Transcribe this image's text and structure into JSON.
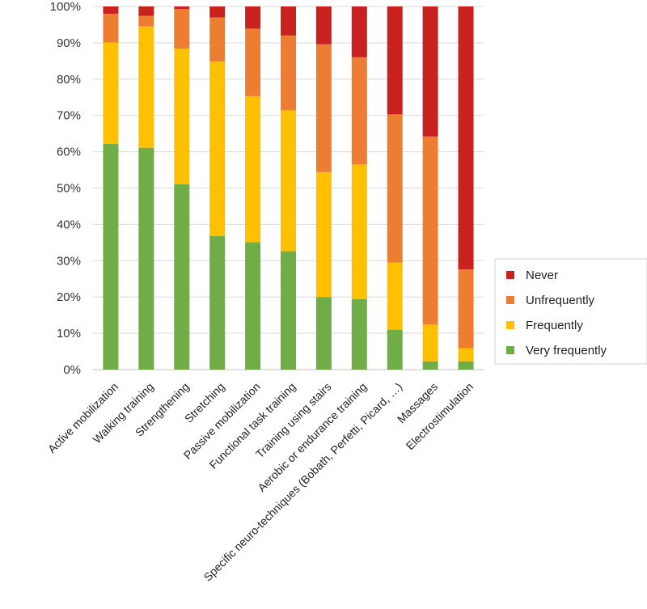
{
  "chart_data": {
    "type": "bar",
    "stacked": true,
    "title": "",
    "xlabel": "",
    "ylabel": "",
    "ylim": [
      0,
      100
    ],
    "y_ticks": [
      "0%",
      "10%",
      "20%",
      "30%",
      "40%",
      "50%",
      "60%",
      "70%",
      "80%",
      "90%",
      "100%"
    ],
    "grid": true,
    "legend_position": "right",
    "categories": [
      "Active mobilization",
      "Walking training",
      "Strengthening",
      "Stretching",
      "Passive mobilization",
      "Functional task training",
      "Training using stairs",
      "Aerobic or endurance training",
      "Specific neuro-techniques (Bobath, Perfetti, Picard, …)",
      "Massages",
      "Electrostimulation"
    ],
    "series": [
      {
        "name": "Very frequently",
        "color": "#70ad47",
        "values": [
          62.2,
          61.1,
          51.0,
          36.8,
          35.1,
          32.6,
          20.0,
          19.4,
          11.0,
          2.3,
          2.3
        ]
      },
      {
        "name": "Frequently",
        "color": "#ffc000",
        "values": [
          27.9,
          33.4,
          37.4,
          48.0,
          40.2,
          38.8,
          34.4,
          37.1,
          18.5,
          10.1,
          3.6
        ]
      },
      {
        "name": "Unfrequently",
        "color": "#ed7d31",
        "values": [
          7.9,
          2.9,
          10.9,
          12.2,
          18.6,
          20.6,
          35.2,
          29.5,
          40.8,
          51.8,
          21.7
        ]
      },
      {
        "name": "Never",
        "color": "#c9211e",
        "values": [
          2.0,
          2.6,
          0.7,
          3.0,
          6.1,
          8.0,
          10.4,
          14.0,
          29.7,
          35.8,
          72.4
        ]
      }
    ],
    "legend_order": [
      "Never",
      "Unfrequently",
      "Frequently",
      "Very frequently"
    ]
  }
}
